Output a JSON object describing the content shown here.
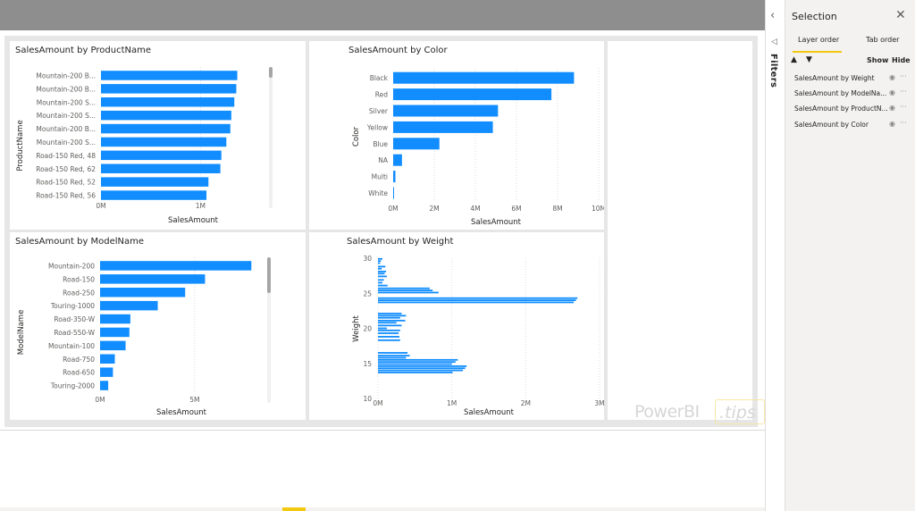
{
  "selection_pane": {
    "title": "Selection",
    "close_icon": "✕",
    "tabs": [
      "Layer order",
      "Tab order"
    ],
    "move_up_icon": "▲",
    "move_down_icon": "▼",
    "show_label": "Show",
    "hide_label": "Hide",
    "items": [
      {
        "label": "SalesAmount by Weight"
      },
      {
        "label": "SalesAmount by ModelNa..."
      },
      {
        "label": "SalesAmount by ProductN..."
      },
      {
        "label": "SalesAmount by Color"
      }
    ],
    "eye_icon": "◉",
    "more_icon": "···",
    "accent_color": "#f2c811"
  },
  "filters_pane": {
    "label": "Filters",
    "collapse_icon": "‹",
    "funnel_icon": "◁"
  },
  "watermark": {
    "text": "PowerBI",
    "suffix": ".tips"
  },
  "colors": {
    "bar": "#118dff",
    "canvas_bg": "#e6e6e6",
    "topbar": "#8e8e8e"
  },
  "chart_data": [
    {
      "type": "bar",
      "title": "SalesAmount by ProductName",
      "orientation": "horizontal",
      "xlabel": "SalesAmount",
      "ylabel": "ProductName",
      "categories": [
        "Mountain-200 B...",
        "Mountain-200 B...",
        "Mountain-200 S...",
        "Mountain-200 S...",
        "Mountain-200 B...",
        "Mountain-200 S...",
        "Road-150 Red, 48",
        "Road-150 Red, 62",
        "Road-150 Red, 52",
        "Road-150 Red, 56"
      ],
      "values": [
        1370000,
        1360000,
        1340000,
        1310000,
        1300000,
        1260000,
        1210000,
        1200000,
        1080000,
        1060000
      ],
      "xlim": [
        0,
        1850000
      ],
      "xticks": [
        {
          "v": 0,
          "label": "0M"
        },
        {
          "v": 1000000,
          "label": "1M"
        }
      ],
      "grid": true,
      "scrollbar": true
    },
    {
      "type": "bar",
      "title": "SalesAmount by Color",
      "orientation": "horizontal",
      "xlabel": "SalesAmount",
      "ylabel": "Color",
      "categories": [
        "Black",
        "Red",
        "Silver",
        "Yellow",
        "Blue",
        "NA",
        "Multi",
        "White"
      ],
      "values": [
        8800000,
        7700000,
        5100000,
        4850000,
        2250000,
        430000,
        110000,
        35000
      ],
      "xlim": [
        0,
        10000000
      ],
      "xticks": [
        {
          "v": 0,
          "label": "0M"
        },
        {
          "v": 2000000,
          "label": "2M"
        },
        {
          "v": 4000000,
          "label": "4M"
        },
        {
          "v": 6000000,
          "label": "6M"
        },
        {
          "v": 8000000,
          "label": "8M"
        },
        {
          "v": 10000000,
          "label": "10M"
        }
      ],
      "grid": true
    },
    {
      "type": "bar",
      "title": "SalesAmount by ModelName",
      "orientation": "horizontal",
      "xlabel": "SalesAmount",
      "ylabel": "ModelName",
      "categories": [
        "Mountain-200",
        "Road-150",
        "Road-250",
        "Touring-1000",
        "Road-350-W",
        "Road-550-W",
        "Mountain-100",
        "Road-750",
        "Road-650",
        "Touring-2000"
      ],
      "values": [
        8000000,
        5550000,
        4500000,
        3050000,
        1600000,
        1550000,
        1350000,
        780000,
        680000,
        430000
      ],
      "xlim": [
        0,
        8600000
      ],
      "xticks": [
        {
          "v": 0,
          "label": "0M"
        },
        {
          "v": 5000000,
          "label": "5M"
        }
      ],
      "grid": true,
      "scrollbar": true
    },
    {
      "type": "bar",
      "title": "SalesAmount by Weight",
      "orientation": "horizontal",
      "xlabel": "SalesAmount",
      "ylabel": "Weight",
      "ylim": [
        10,
        30
      ],
      "yticks": [
        10,
        15,
        20,
        25,
        30
      ],
      "xlim": [
        0,
        3000000
      ],
      "xticks": [
        {
          "v": 0,
          "label": "0M"
        },
        {
          "v": 1000000,
          "label": "1M"
        },
        {
          "v": 2000000,
          "label": "2M"
        },
        {
          "v": 3000000,
          "label": "3M"
        }
      ],
      "grid": true,
      "points": [
        {
          "y": 29.9,
          "x": 60000
        },
        {
          "y": 29.6,
          "x": 40000
        },
        {
          "y": 29.3,
          "x": 30000
        },
        {
          "y": 28.8,
          "x": 100000
        },
        {
          "y": 28.5,
          "x": 50000
        },
        {
          "y": 28.1,
          "x": 110000
        },
        {
          "y": 27.8,
          "x": 90000
        },
        {
          "y": 27.4,
          "x": 120000
        },
        {
          "y": 26.9,
          "x": 80000
        },
        {
          "y": 26.5,
          "x": 60000
        },
        {
          "y": 26.1,
          "x": 130000
        },
        {
          "y": 25.7,
          "x": 700000
        },
        {
          "y": 25.4,
          "x": 740000
        },
        {
          "y": 25.1,
          "x": 820000
        },
        {
          "y": 24.3,
          "x": 2700000
        },
        {
          "y": 24.0,
          "x": 2680000
        },
        {
          "y": 23.7,
          "x": 2650000
        },
        {
          "y": 22.1,
          "x": 320000
        },
        {
          "y": 21.8,
          "x": 380000
        },
        {
          "y": 21.5,
          "x": 300000
        },
        {
          "y": 21.1,
          "x": 370000
        },
        {
          "y": 20.8,
          "x": 250000
        },
        {
          "y": 20.4,
          "x": 320000
        },
        {
          "y": 20.0,
          "x": 120000
        },
        {
          "y": 19.7,
          "x": 300000
        },
        {
          "y": 19.3,
          "x": 280000
        },
        {
          "y": 18.8,
          "x": 290000
        },
        {
          "y": 18.3,
          "x": 300000
        },
        {
          "y": 16.5,
          "x": 400000
        },
        {
          "y": 16.1,
          "x": 430000
        },
        {
          "y": 15.8,
          "x": 380000
        },
        {
          "y": 15.5,
          "x": 1080000
        },
        {
          "y": 15.2,
          "x": 1050000
        },
        {
          "y": 14.9,
          "x": 1000000
        },
        {
          "y": 14.6,
          "x": 1200000
        },
        {
          "y": 14.3,
          "x": 1180000
        },
        {
          "y": 14.0,
          "x": 1150000
        },
        {
          "y": 13.7,
          "x": 1010000
        }
      ]
    }
  ]
}
